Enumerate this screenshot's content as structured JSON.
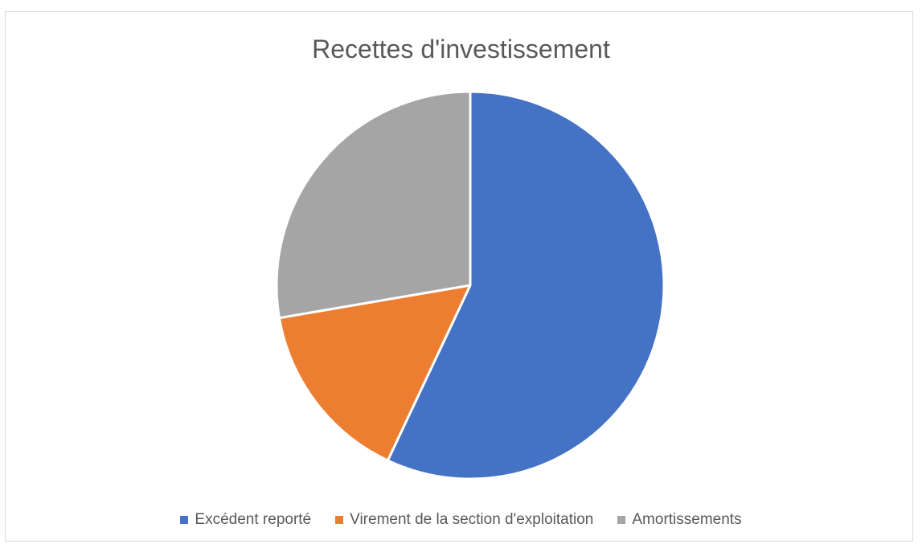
{
  "chart_data": {
    "type": "pie",
    "title": "Recettes d'investissement",
    "categories": [
      "Excédent reporté",
      "Virement de la section d'exploitation",
      "Amortissements"
    ],
    "values": [
      57,
      15.3,
      27.7
    ],
    "colors": [
      "#4472C4",
      "#ED7D31",
      "#A5A5A5"
    ],
    "start_angle_deg": 0,
    "direction": "clockwise",
    "legend_position": "bottom",
    "data_labels": false
  }
}
